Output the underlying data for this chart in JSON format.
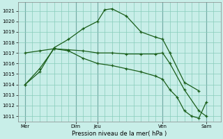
{
  "xlabel": "Pression niveau de la mer( hPa )",
  "background_color": "#c8eee8",
  "grid_color": "#88ccbb",
  "line_color": "#1a5e1a",
  "vline_color": "#446677",
  "ylim": [
    1010.5,
    1021.8
  ],
  "yticks": [
    1011,
    1012,
    1013,
    1014,
    1015,
    1016,
    1017,
    1018,
    1019,
    1020,
    1021
  ],
  "xlim": [
    0,
    14
  ],
  "xtick_positions": [
    0.5,
    4.0,
    5.5,
    10.0,
    13.0
  ],
  "xtick_labels": [
    "Mer",
    "Dim",
    "Jeu",
    "Ven",
    "Sam"
  ],
  "vline_positions": [
    0.5,
    4.0,
    5.5,
    10.0,
    13.0
  ],
  "series1_x": [
    0.5,
    1.5,
    2.5,
    3.5,
    4.5,
    5.5,
    6.0,
    6.5,
    7.5,
    8.5,
    9.5,
    10.0,
    10.5,
    11.5,
    12.5
  ],
  "series1_y": [
    1014.0,
    1015.2,
    1017.5,
    1018.3,
    1019.3,
    1020.0,
    1021.1,
    1021.2,
    1020.5,
    1019.0,
    1018.5,
    1018.3,
    1017.0,
    1014.2,
    1013.4
  ],
  "series2_x": [
    0.5,
    1.5,
    2.5,
    3.5,
    4.5,
    5.5,
    6.5,
    7.5,
    8.5,
    9.5,
    10.0,
    10.5,
    11.5,
    12.5,
    13.0
  ],
  "series2_y": [
    1017.0,
    1017.2,
    1017.4,
    1017.3,
    1017.2,
    1017.0,
    1017.0,
    1016.9,
    1016.9,
    1016.9,
    1017.0,
    1016.0,
    1013.5,
    1011.5,
    1011.0
  ],
  "series3_x": [
    0.5,
    1.5,
    2.5,
    3.5,
    4.5,
    5.5,
    6.5,
    7.5,
    8.5,
    9.5,
    10.0,
    10.5,
    11.0,
    11.5,
    12.0,
    12.5,
    13.0
  ],
  "series3_y": [
    1014.0,
    1015.5,
    1017.4,
    1017.2,
    1016.5,
    1016.0,
    1015.8,
    1015.5,
    1015.2,
    1014.8,
    1014.5,
    1013.5,
    1012.8,
    1011.5,
    1011.0,
    1010.8,
    1012.3
  ]
}
